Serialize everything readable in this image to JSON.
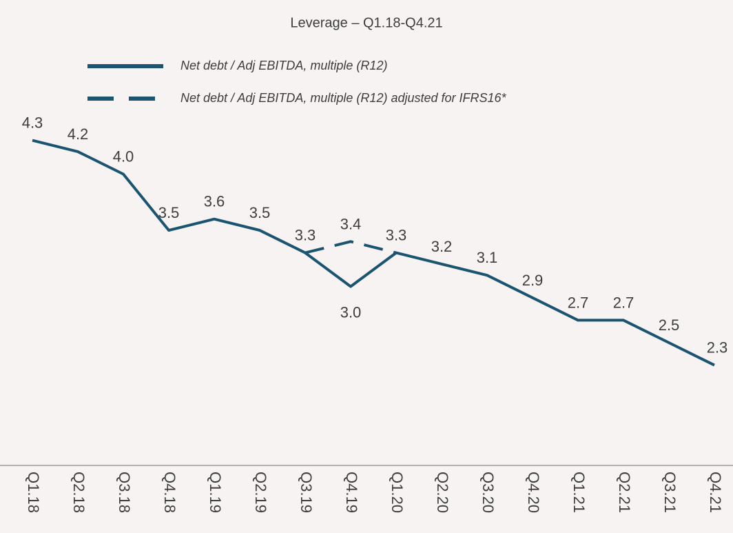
{
  "chart_data": {
    "type": "line",
    "title": "Leverage – Q1.18-Q4.21",
    "categories": [
      "Q1.18",
      "Q2.18",
      "Q3.18",
      "Q4.18",
      "Q1.19",
      "Q2.19",
      "Q3.19",
      "Q4.19",
      "Q1.20",
      "Q2.20",
      "Q3.20",
      "Q4.20",
      "Q1.21",
      "Q2.21",
      "Q3.21",
      "Q4.21"
    ],
    "series": [
      {
        "name": "Net debt / Adj EBITDA, multiple (R12)",
        "color": "#1b5470",
        "dashed": false,
        "values": [
          4.3,
          4.2,
          4.0,
          3.5,
          3.6,
          3.5,
          3.3,
          3.0,
          3.3,
          3.2,
          3.1,
          2.9,
          2.7,
          2.7,
          2.5,
          2.3
        ],
        "value_labels": [
          "4.3",
          "4.2",
          "4.0",
          "3.5",
          "3.6",
          "3.5",
          "3.3",
          "3.0",
          "3.3",
          "3.2",
          "3.1",
          "2.9",
          "2.7",
          "2.7",
          "2.5",
          "2.3"
        ]
      },
      {
        "name": "Net debt / Adj EBITDA, multiple (R12) adjusted for IFRS16*",
        "color": "#1b5470",
        "dashed": true,
        "values": [
          null,
          null,
          null,
          null,
          null,
          null,
          3.3,
          3.4,
          3.3,
          null,
          null,
          null,
          null,
          null,
          null,
          null
        ],
        "value_labels": [
          null,
          null,
          null,
          null,
          null,
          null,
          null,
          "3.4",
          null,
          null,
          null,
          null,
          null,
          null,
          null,
          null
        ]
      }
    ],
    "ylim": [
      1.5,
      4.5
    ]
  }
}
